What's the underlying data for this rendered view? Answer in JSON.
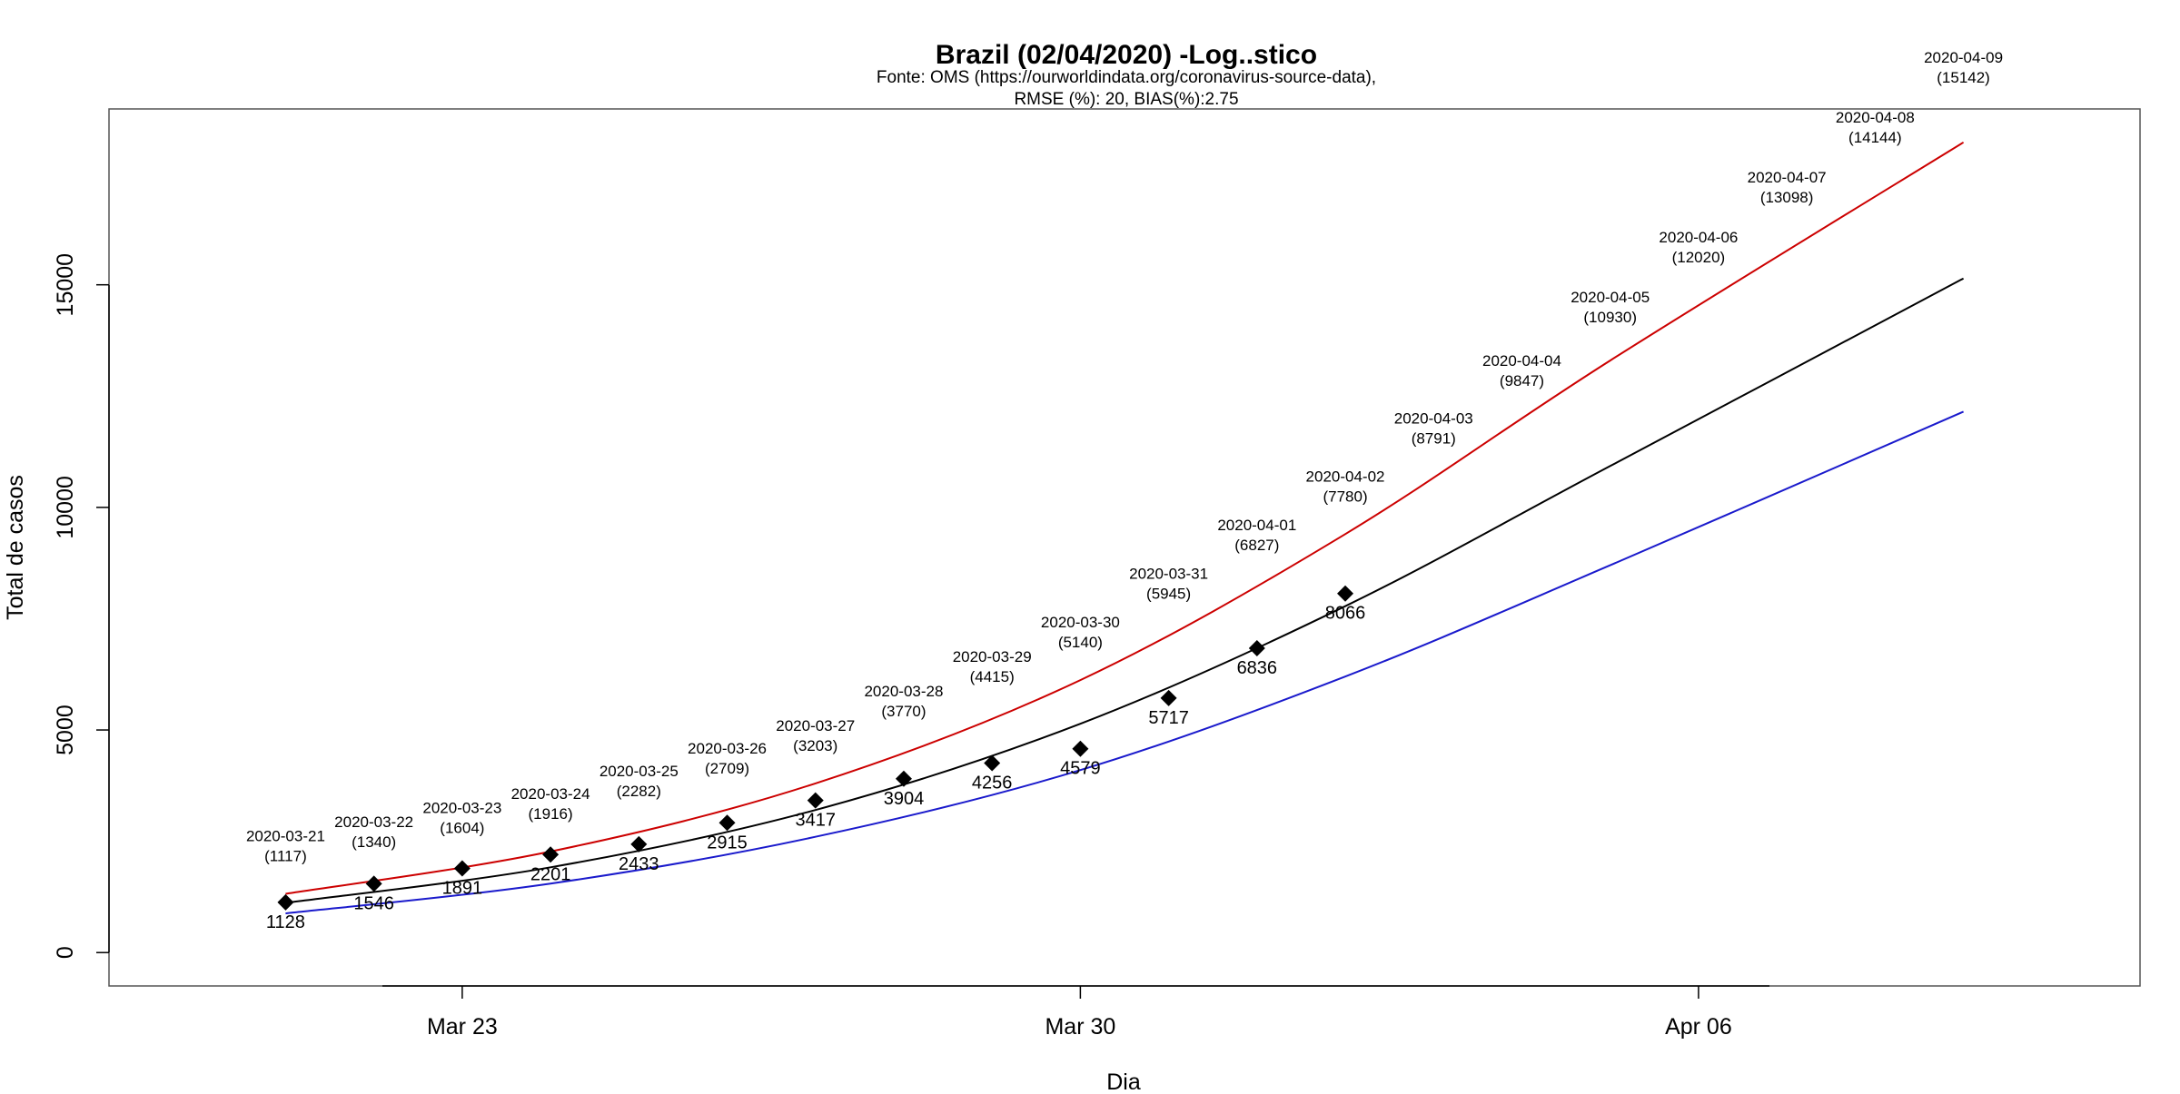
{
  "chart_data": {
    "type": "line",
    "title": "Brazil (02/04/2020) -Log..stico",
    "subtitle_lines": [
      "Fonte: OMS (https://ourworldindata.org/coronavirus-source-data),",
      "RMSE (%): 20, BIAS(%):2.75"
    ],
    "xlabel": "Dia",
    "ylabel": "Total de casos",
    "x_range": [
      "2020-03-19",
      "2020-04-11"
    ],
    "ylim": [
      -750,
      18950
    ],
    "x_ticks": [
      {
        "date": "2020-03-23",
        "label": "Mar 23"
      },
      {
        "date": "2020-03-30",
        "label": "Mar 30"
      },
      {
        "date": "2020-04-06",
        "label": "Apr 06"
      }
    ],
    "y_ticks": [
      0,
      5000,
      10000,
      15000
    ],
    "grid": false,
    "observed": {
      "marker": "diamond",
      "points": [
        {
          "date": "2020-03-21",
          "value": 1128
        },
        {
          "date": "2020-03-22",
          "value": 1546
        },
        {
          "date": "2020-03-23",
          "value": 1891
        },
        {
          "date": "2020-03-24",
          "value": 2201
        },
        {
          "date": "2020-03-25",
          "value": 2433
        },
        {
          "date": "2020-03-26",
          "value": 2915
        },
        {
          "date": "2020-03-27",
          "value": 3417
        },
        {
          "date": "2020-03-28",
          "value": 3904
        },
        {
          "date": "2020-03-29",
          "value": 4256
        },
        {
          "date": "2020-03-30",
          "value": 4579
        },
        {
          "date": "2020-03-31",
          "value": 5717
        },
        {
          "date": "2020-04-01",
          "value": 6836
        },
        {
          "date": "2020-04-02",
          "value": 8066
        }
      ]
    },
    "predictions": [
      {
        "date": "2020-03-21",
        "date_label": "2020-03-21",
        "value_label": "(1117)"
      },
      {
        "date": "2020-03-22",
        "date_label": "2020-03-22",
        "value_label": "(1340)"
      },
      {
        "date": "2020-03-23",
        "date_label": "2020-03-23",
        "value_label": "(1604)"
      },
      {
        "date": "2020-03-24",
        "date_label": "2020-03-24",
        "value_label": "(1916)"
      },
      {
        "date": "2020-03-25",
        "date_label": "2020-03-25",
        "value_label": "(2282)"
      },
      {
        "date": "2020-03-26",
        "date_label": "2020-03-26",
        "value_label": "(2709)"
      },
      {
        "date": "2020-03-27",
        "date_label": "2020-03-27",
        "value_label": "(3203)"
      },
      {
        "date": "2020-03-28",
        "date_label": "2020-03-28",
        "value_label": "(3770)"
      },
      {
        "date": "2020-03-29",
        "date_label": "2020-03-29",
        "value_label": "(4415)"
      },
      {
        "date": "2020-03-30",
        "date_label": "2020-03-30",
        "value_label": "(5140)"
      },
      {
        "date": "2020-03-31",
        "date_label": "2020-03-31",
        "value_label": "(5945)"
      },
      {
        "date": "2020-04-01",
        "date_label": "2020-04-01",
        "value_label": "(6827)"
      },
      {
        "date": "2020-04-02",
        "date_label": "2020-04-02",
        "value_label": "(7780)"
      },
      {
        "date": "2020-04-03",
        "date_label": "2020-04-03",
        "value_label": "(8791)"
      },
      {
        "date": "2020-04-04",
        "date_label": "2020-04-04",
        "value_label": "(9847)"
      },
      {
        "date": "2020-04-05",
        "date_label": "2020-04-05",
        "value_label": "(10930)"
      },
      {
        "date": "2020-04-06",
        "date_label": "2020-04-06",
        "value_label": "(12020)"
      },
      {
        "date": "2020-04-07",
        "date_label": "2020-04-07",
        "value_label": "(13098)"
      },
      {
        "date": "2020-04-08",
        "date_label": "2020-04-08",
        "value_label": "(14144)"
      },
      {
        "date": "2020-04-09",
        "date_label": "2020-04-09",
        "value_label": "(15142)"
      }
    ],
    "series": [
      {
        "color": "#cc0000",
        "x": [
          "2020-03-21",
          "2020-03-24",
          "2020-03-27",
          "2020-03-30",
          "2020-04-02",
          "2020-04-05",
          "2020-04-09"
        ],
        "values": [
          1320,
          2270,
          3800,
          6120,
          9400,
          13300,
          18200
        ]
      },
      {
        "color": "#000000",
        "x": [
          "2020-03-21",
          "2020-03-24",
          "2020-03-27",
          "2020-03-30",
          "2020-04-02",
          "2020-04-05",
          "2020-04-09"
        ],
        "values": [
          1117,
          1916,
          3203,
          5140,
          7780,
          10930,
          15142
        ]
      },
      {
        "color": "#1a1acc",
        "x": [
          "2020-03-21",
          "2020-03-24",
          "2020-03-27",
          "2020-03-30",
          "2020-04-02",
          "2020-04-05",
          "2020-04-09"
        ],
        "values": [
          880,
          1550,
          2600,
          4100,
          6200,
          8700,
          12150
        ]
      }
    ]
  }
}
